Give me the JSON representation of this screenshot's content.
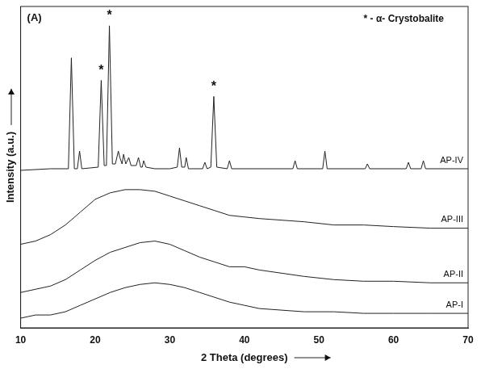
{
  "chart_data": {
    "type": "line",
    "x_label": "2 Theta (degrees)",
    "y_label": "Intensity (a.u.)",
    "annotations": [
      {
        "text": "(A)"
      },
      {
        "text": "* - α- Crystobalite"
      }
    ],
    "peak_marks": {
      "label": "*",
      "x": [
        20.8,
        21.9,
        35.9
      ],
      "y": [
        80,
        97,
        75
      ]
    },
    "xlim": [
      10,
      70
    ],
    "xticks": [
      10,
      20,
      30,
      40,
      50,
      60,
      70
    ],
    "ylim": [
      0,
      100
    ],
    "tick_labels": "x",
    "grid": false,
    "series": [
      {
        "name": "AP-IV",
        "color": "#222222",
        "x": [
          10,
          14,
          16.4,
          16.8,
          17.2,
          17.6,
          17.9,
          18.2,
          20.4,
          20.8,
          21.2,
          21.5,
          21.9,
          22.3,
          22.7,
          23.1,
          23.3,
          23.6,
          23.8,
          24.1,
          24.5,
          24.8,
          25.5,
          25.8,
          26.1,
          26.3,
          26.5,
          26.8,
          28,
          30,
          31.0,
          31.3,
          31.6,
          32.0,
          32.2,
          32.5,
          34.4,
          34.7,
          35.0,
          35.5,
          35.9,
          36.3,
          37.7,
          38.0,
          38.3,
          46.5,
          46.8,
          47.1,
          50.5,
          50.8,
          51.1,
          56.2,
          56.5,
          56.8,
          61.7,
          62,
          62.3,
          63.7,
          64,
          64.3,
          70
        ],
        "values": [
          49,
          49.5,
          49.5,
          84,
          49.5,
          49.5,
          55,
          49.5,
          50,
          77,
          50.5,
          50.5,
          94,
          51,
          51,
          55,
          53,
          51,
          54,
          51,
          53,
          50.5,
          50.5,
          53,
          50,
          50,
          52,
          50,
          49.5,
          49.5,
          50,
          56,
          50,
          50,
          53,
          49.5,
          49.5,
          51.5,
          49.5,
          50,
          72,
          50,
          49.5,
          52,
          49.5,
          49.5,
          52,
          49.5,
          49.5,
          55,
          49.5,
          49.5,
          51,
          49.5,
          49.5,
          51.5,
          49.5,
          49.5,
          52,
          49.5,
          49.5
        ]
      },
      {
        "name": "AP-III",
        "color": "#222222",
        "x": [
          10,
          12,
          14,
          16,
          18,
          20,
          22,
          24,
          26,
          28,
          30,
          32,
          34,
          36,
          38,
          40,
          42,
          45,
          48,
          52,
          56,
          60,
          65,
          70
        ],
        "values": [
          26,
          27,
          29,
          32,
          36,
          40,
          42,
          43,
          43,
          42.5,
          41,
          39.5,
          38,
          36.5,
          35,
          34.5,
          34,
          33.5,
          33,
          32,
          32,
          31.5,
          31,
          31
        ]
      },
      {
        "name": "AP-II",
        "color": "#222222",
        "x": [
          10,
          12,
          14,
          16,
          18,
          20,
          22,
          24,
          26,
          28,
          30,
          32,
          34,
          36,
          38,
          40,
          42,
          45,
          48,
          52,
          56,
          60,
          65,
          70
        ],
        "values": [
          11,
          12,
          13,
          15,
          18,
          21,
          23.5,
          25,
          26.5,
          27,
          26,
          24,
          22,
          20.5,
          19,
          19,
          18,
          17,
          16,
          15,
          14.5,
          14.5,
          14,
          14
        ]
      },
      {
        "name": "AP-I",
        "color": "#222222",
        "x": [
          10,
          12,
          14,
          16,
          18,
          20,
          22,
          24,
          26,
          28,
          30,
          32,
          34,
          36,
          38,
          40,
          42,
          45,
          48,
          52,
          56,
          60,
          65,
          70
        ],
        "values": [
          3,
          4,
          4,
          5,
          7,
          9,
          11,
          12.5,
          13.5,
          14,
          13.5,
          12.5,
          11,
          9.5,
          8,
          7,
          6,
          5.5,
          5,
          5,
          4.5,
          4.5,
          4.5,
          4.5
        ]
      }
    ]
  }
}
